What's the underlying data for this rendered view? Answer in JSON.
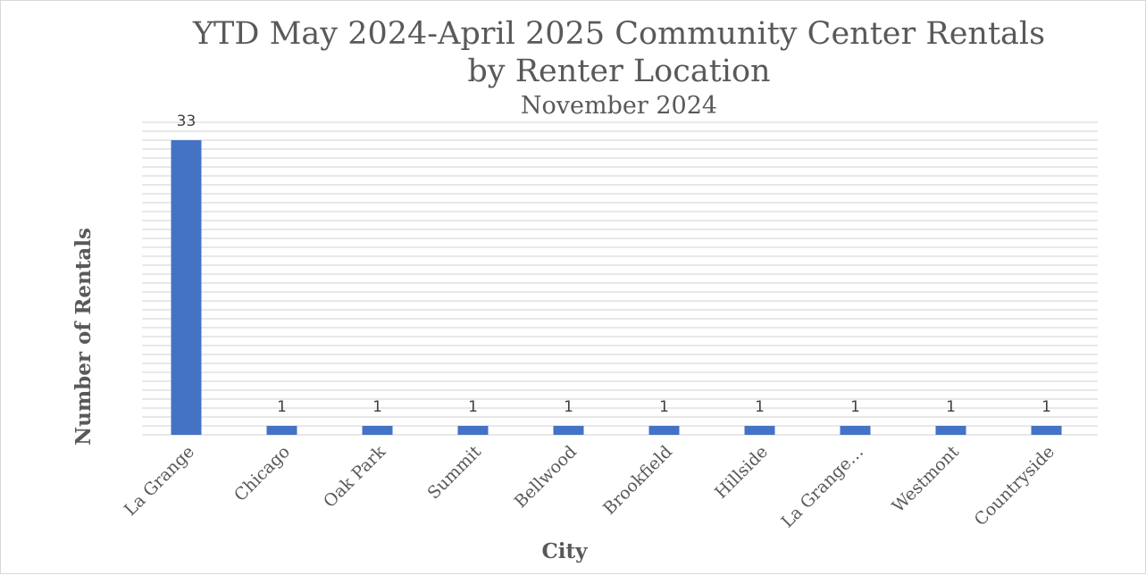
{
  "chart_data": {
    "type": "bar",
    "title": "YTD May 2024-April 2025 Community Center Rentals",
    "title_line2": "by Renter Location",
    "subtitle": "November 2024",
    "xlabel": "City",
    "ylabel": "Number of Rentals",
    "categories": [
      "La Grange",
      "Chicago",
      "Oak Park",
      "Summit",
      "Bellwood",
      "Brookfield",
      "Hillside",
      "La Grange…",
      "Westmont",
      "Countryside"
    ],
    "values": [
      33,
      1,
      1,
      1,
      1,
      1,
      1,
      1,
      1,
      1
    ],
    "ylim": [
      0,
      35
    ],
    "grid": true,
    "gridline_step": 1,
    "legend": "none",
    "bar_color": "#4472c4",
    "grid_color": "#d9d9d9"
  }
}
